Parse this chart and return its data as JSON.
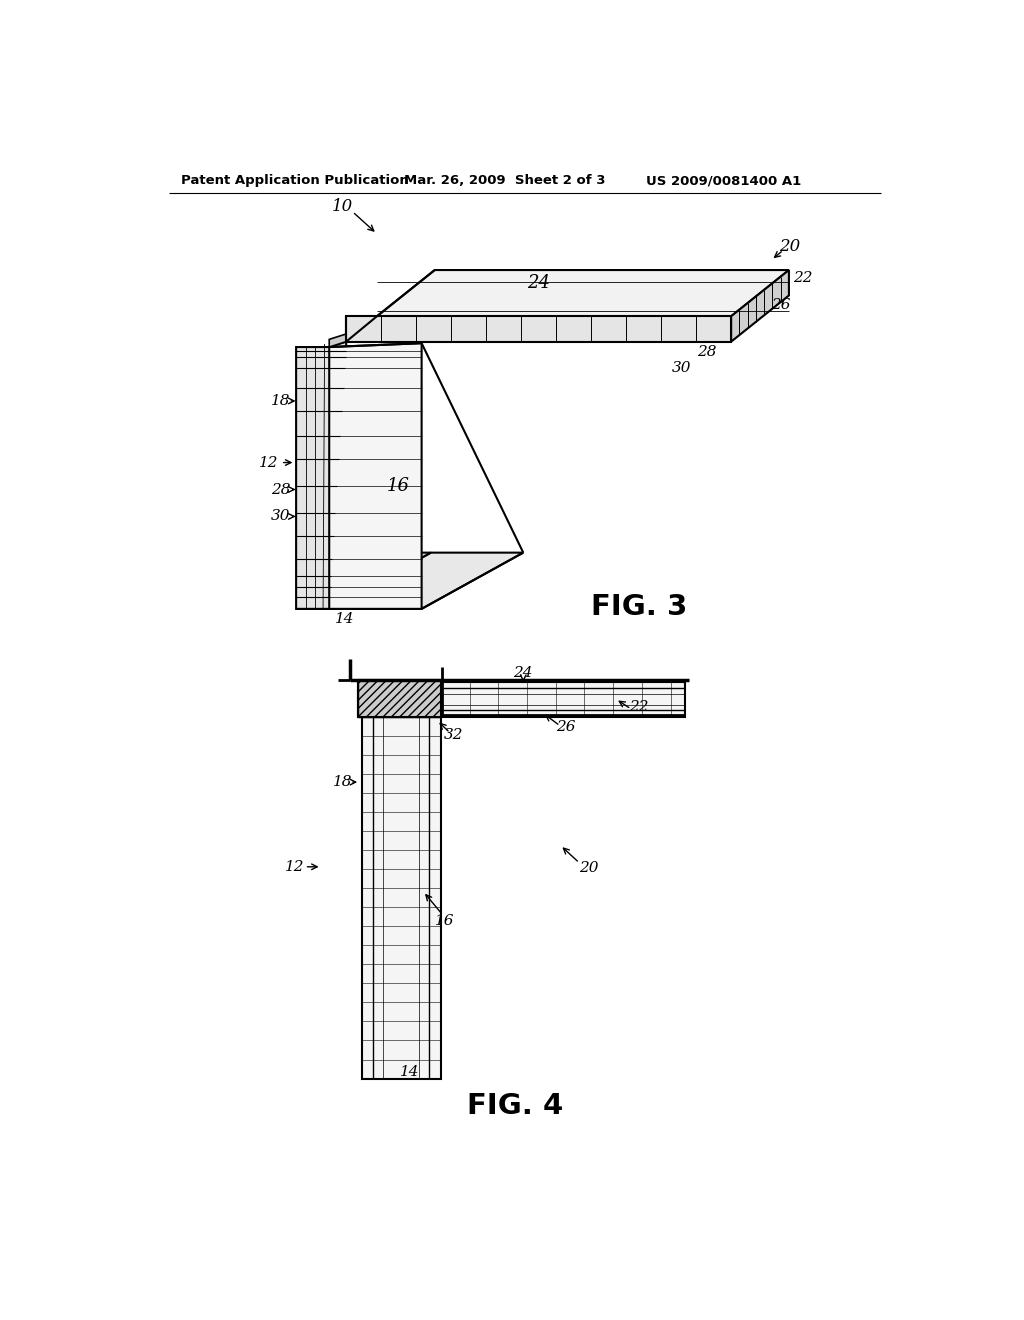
{
  "background_color": "#ffffff",
  "header_text": "Patent Application Publication",
  "header_date": "Mar. 26, 2009  Sheet 2 of 3",
  "header_patent": "US 2009/0081400 A1",
  "fig3_label": "FIG. 3",
  "fig4_label": "FIG. 4",
  "line_color": "#000000"
}
